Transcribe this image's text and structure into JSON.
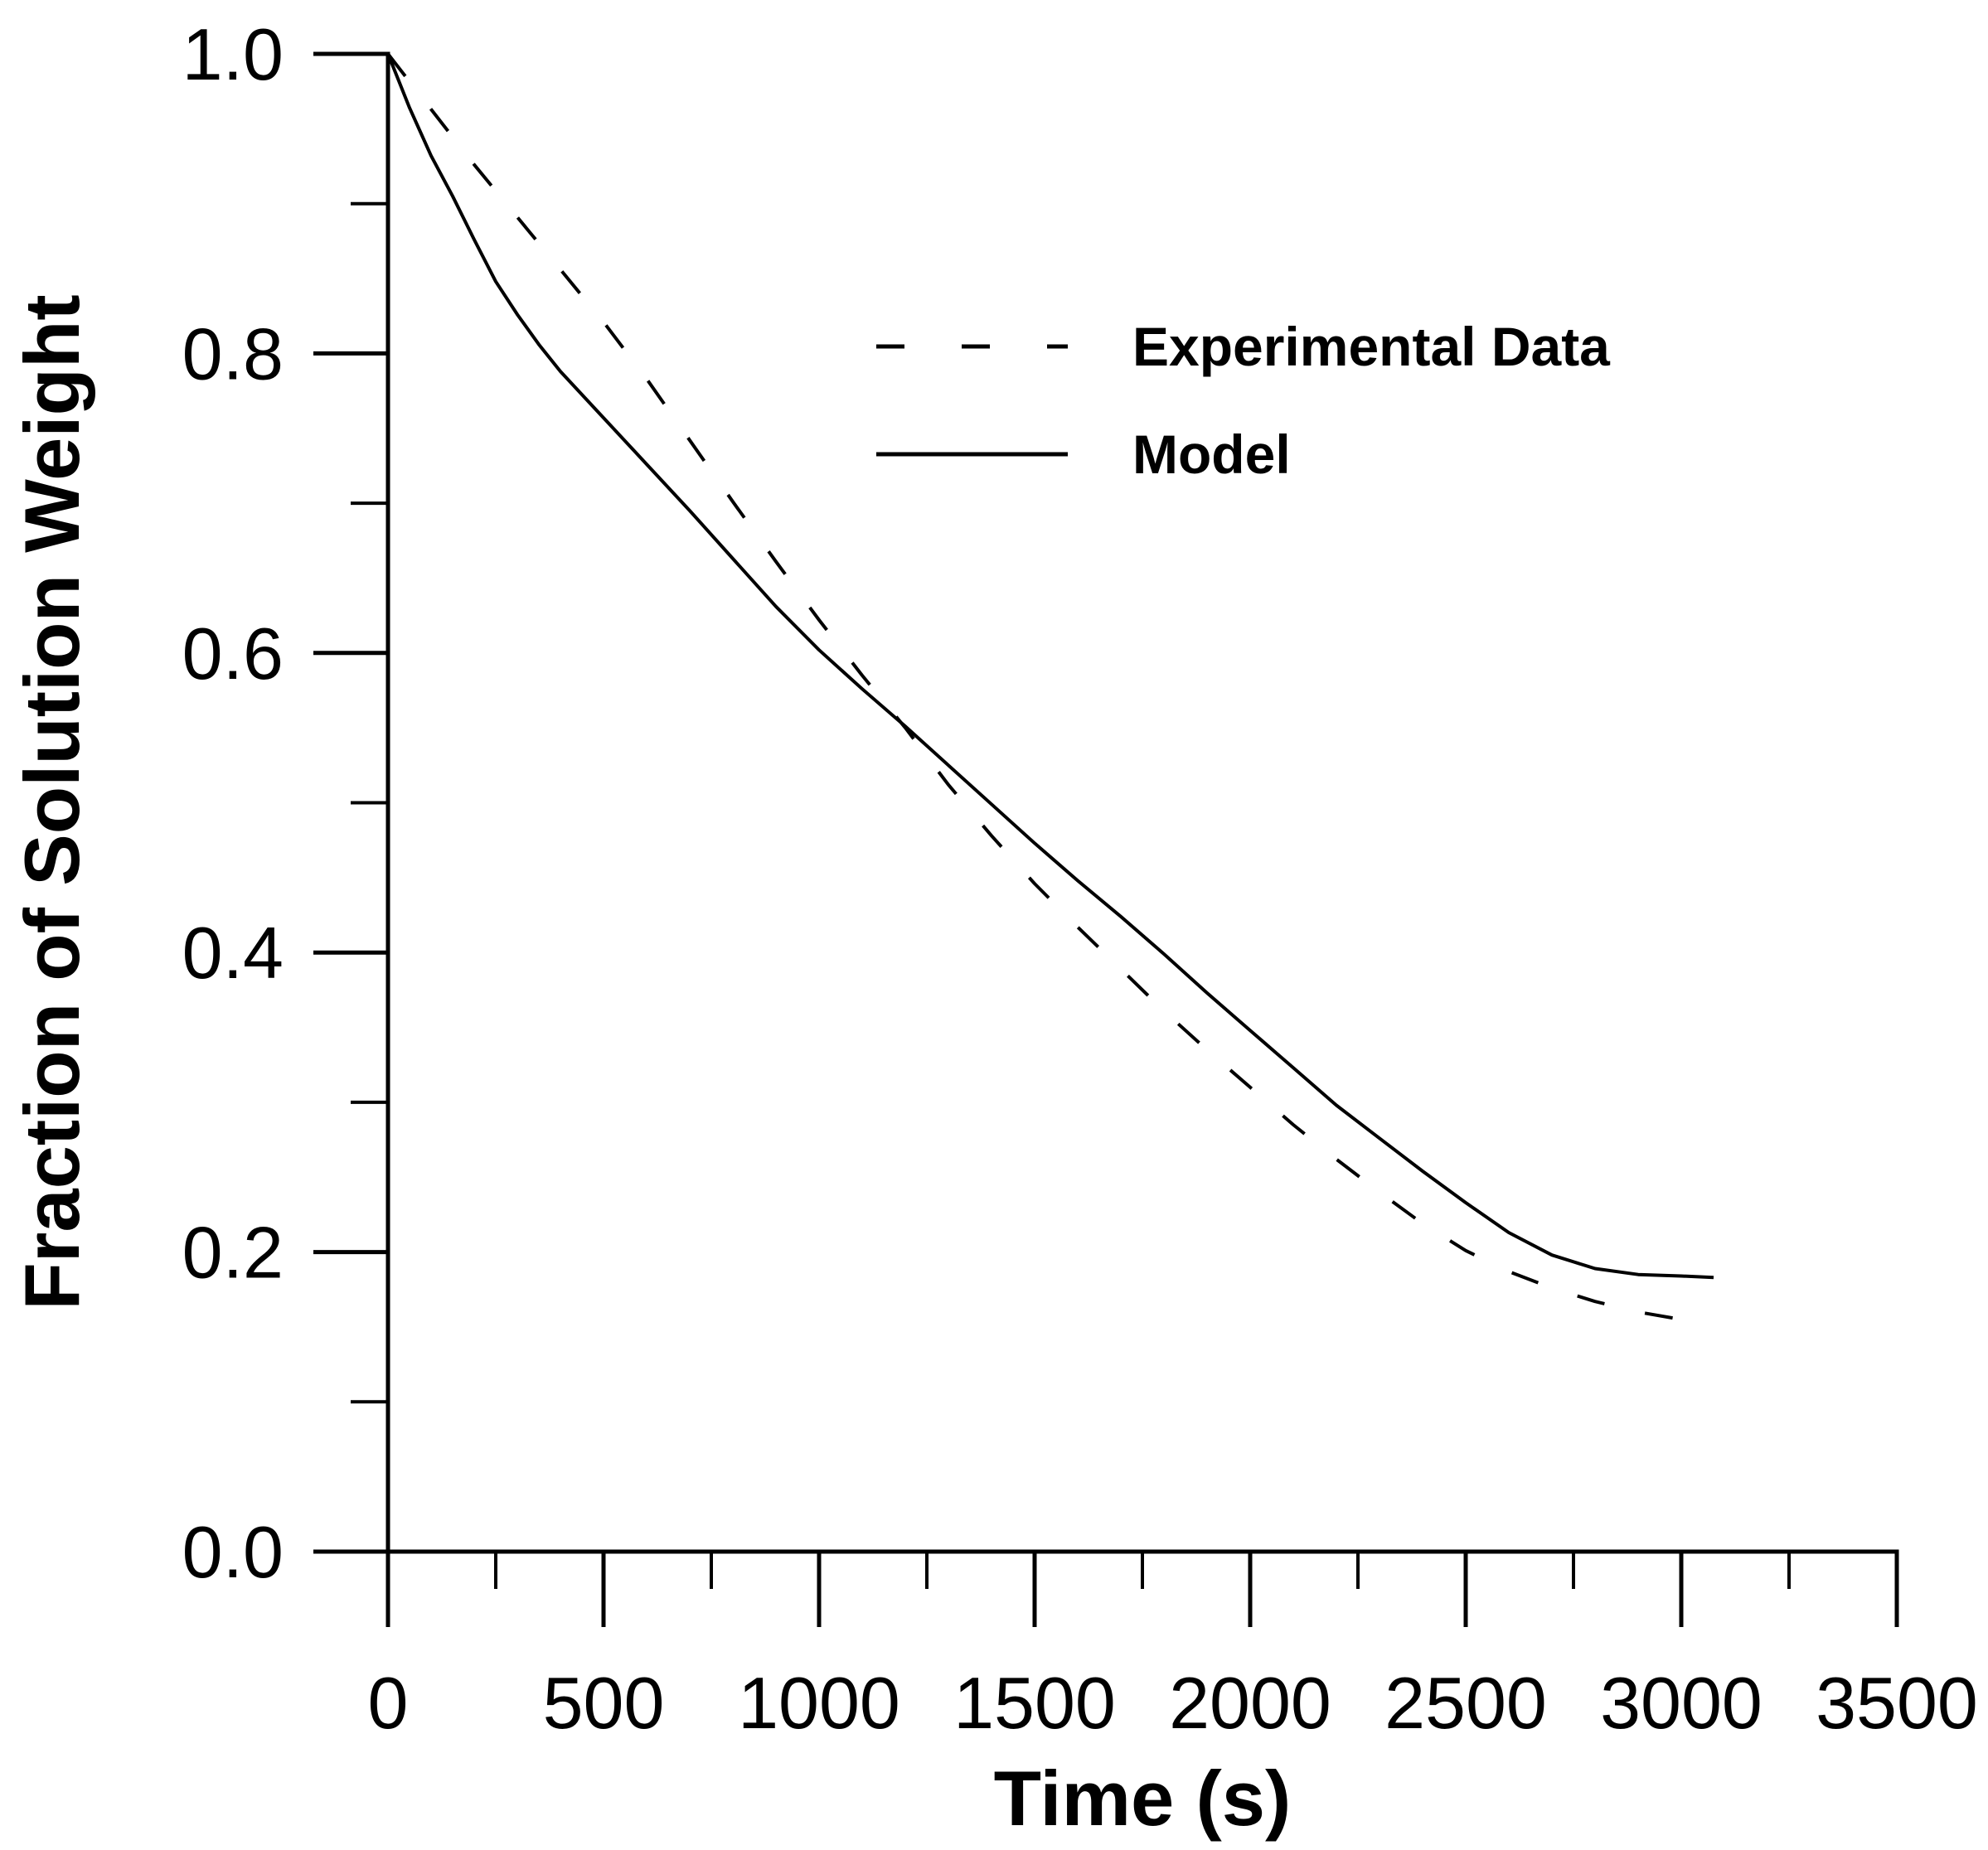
{
  "page": {
    "background_color": "#ffffff",
    "foreground_color": "#000000"
  },
  "chart_data": {
    "type": "line",
    "title": "",
    "xlabel": "Time (s)",
    "ylabel": "Fraction of Solution Weight",
    "xlim": [
      0,
      3500
    ],
    "ylim": [
      0.0,
      1.0
    ],
    "grid": "off",
    "background": "#ffffff",
    "line_color": "#000000",
    "legend_position": "inside-upper-middle",
    "x_major_ticks": [
      0,
      500,
      1000,
      1500,
      2000,
      2500,
      3000,
      3500
    ],
    "x_minor_ticks": [
      250,
      750,
      1250,
      1750,
      2250,
      2750,
      3250
    ],
    "x_tick_labels": [
      "0",
      "500",
      "1000",
      "1500",
      "2000",
      "2500",
      "3000",
      "3500"
    ],
    "y_major_ticks": [
      0.0,
      0.2,
      0.4,
      0.6,
      0.8,
      1.0
    ],
    "y_minor_ticks": [
      0.1,
      0.3,
      0.5,
      0.7,
      0.9
    ],
    "y_tick_labels": [
      "0.0",
      "0.2",
      "0.4",
      "0.6",
      "0.8",
      "1.0"
    ],
    "series": [
      {
        "name": "Experimental Data",
        "style": "dashed",
        "x": [
          0,
          100,
          200,
          300,
          400,
          500,
          600,
          700,
          800,
          900,
          1000,
          1100,
          1200,
          1300,
          1400,
          1500,
          1600,
          1700,
          1800,
          1900,
          2000,
          2100,
          2200,
          2300,
          2400,
          2500,
          2600,
          2700,
          2800,
          2900,
          3000,
          3075
        ],
        "y": [
          1.0,
          0.963,
          0.926,
          0.891,
          0.856,
          0.821,
          0.783,
          0.742,
          0.701,
          0.661,
          0.622,
          0.585,
          0.55,
          0.512,
          0.478,
          0.446,
          0.417,
          0.389,
          0.361,
          0.335,
          0.31,
          0.285,
          0.262,
          0.24,
          0.219,
          0.201,
          0.187,
          0.176,
          0.167,
          0.16,
          0.155,
          0.152
        ]
      },
      {
        "name": "Model",
        "style": "solid",
        "x": [
          0,
          25,
          50,
          75,
          100,
          150,
          200,
          250,
          300,
          350,
          400,
          500,
          600,
          700,
          800,
          900,
          1000,
          1100,
          1200,
          1300,
          1400,
          1500,
          1600,
          1700,
          1800,
          1900,
          2000,
          2100,
          2200,
          2300,
          2400,
          2500,
          2600,
          2700,
          2800,
          2900,
          3000,
          3075
        ],
        "y": [
          1.0,
          0.982,
          0.964,
          0.948,
          0.932,
          0.905,
          0.876,
          0.848,
          0.826,
          0.806,
          0.788,
          0.757,
          0.726,
          0.695,
          0.663,
          0.631,
          0.602,
          0.576,
          0.551,
          0.525,
          0.499,
          0.473,
          0.448,
          0.424,
          0.399,
          0.373,
          0.348,
          0.323,
          0.298,
          0.276,
          0.254,
          0.233,
          0.213,
          0.198,
          0.189,
          0.185,
          0.184,
          0.183
        ]
      }
    ],
    "annotations": {
      "curves_cross_at": {
        "t": 1200,
        "fraction": 0.55
      }
    }
  }
}
